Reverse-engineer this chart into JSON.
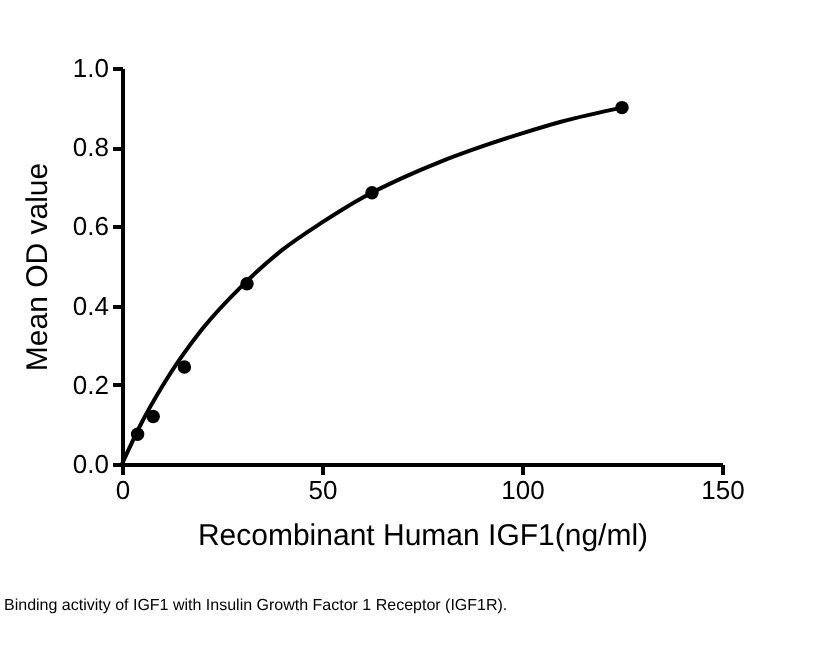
{
  "chart_data": {
    "type": "scatter",
    "xlabel": "Recombinant Human IGF1(ng/ml)",
    "ylabel": "Mean OD value",
    "x": [
      3.9,
      7.8,
      15.6,
      31.25,
      62.5,
      125
    ],
    "series": [
      {
        "color": "#000000",
        "marker": "circle",
        "values": [
          0.075,
          0.12,
          0.245,
          0.455,
          0.685,
          0.9
        ]
      },
      {
        "type": "line",
        "color": "#000000",
        "marker": "none",
        "line_style": "solid",
        "x": [
          0,
          5,
          10,
          20,
          30,
          40,
          50,
          60,
          70,
          80,
          90,
          100,
          110,
          125
        ],
        "values": [
          0,
          0.106,
          0.195,
          0.34,
          0.45,
          0.54,
          0.61,
          0.672,
          0.722,
          0.765,
          0.802,
          0.835,
          0.865,
          0.9
        ]
      }
    ],
    "xlim": [
      0,
      150
    ],
    "xticks": [
      0,
      50,
      100,
      150
    ],
    "ylim": [
      0,
      1.0
    ],
    "yticks": [
      {
        "value": 0,
        "label": "0.0"
      },
      {
        "value": 0.2,
        "label": "0.2"
      },
      {
        "value": 0.4,
        "label": "0.4"
      },
      {
        "value": 0.6,
        "label": "0.6"
      },
      {
        "value": 0.8,
        "label": "0.8"
      },
      {
        "value": 1.0,
        "label": "1.0"
      }
    ],
    "grid": false,
    "annotations": [
      "Binding activity of IGF1 with Insulin Growth Factor 1 Receptor (IGF1R)."
    ]
  }
}
